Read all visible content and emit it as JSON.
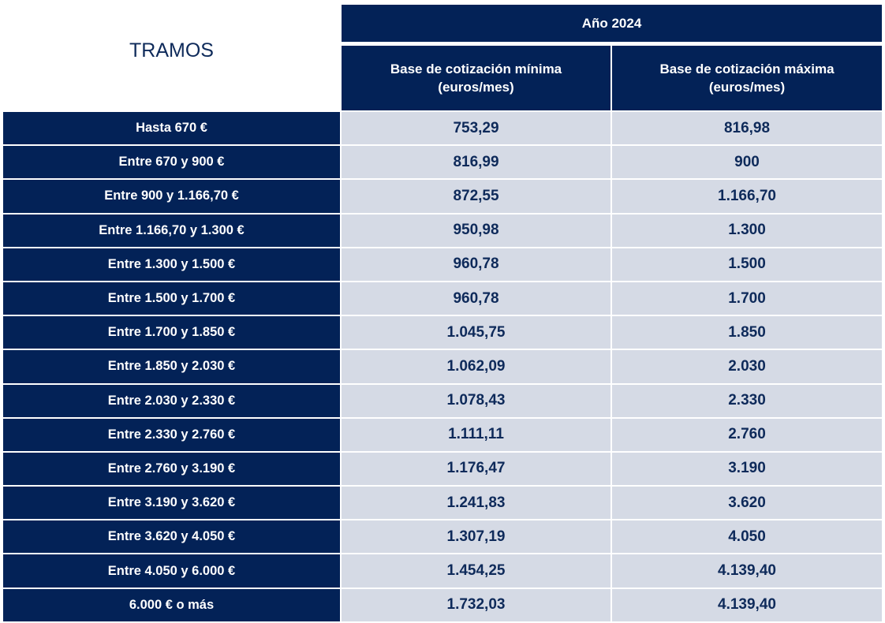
{
  "header": {
    "tramos_label": "TRAMOS",
    "year_label": "Año 2024",
    "min_label_line1": "Base de cotización mínima",
    "min_label_line2": "(euros/mes)",
    "max_label_line1": "Base de cotización máxima",
    "max_label_line2": "(euros/mes)"
  },
  "rows": [
    {
      "tramo": "Hasta 670 €",
      "min": "753,29",
      "max": "816,98"
    },
    {
      "tramo": "Entre 670 y 900 €",
      "min": "816,99",
      "max": "900"
    },
    {
      "tramo": "Entre 900 y 1.166,70 €",
      "min": "872,55",
      "max": "1.166,70"
    },
    {
      "tramo": "Entre 1.166,70 y 1.300 €",
      "min": "950,98",
      "max": "1.300"
    },
    {
      "tramo": "Entre 1.300 y 1.500 €",
      "min": "960,78",
      "max": "1.500"
    },
    {
      "tramo": "Entre 1.500 y 1.700 €",
      "min": "960,78",
      "max": "1.700"
    },
    {
      "tramo": "Entre 1.700 y 1.850 €",
      "min": "1.045,75",
      "max": "1.850"
    },
    {
      "tramo": "Entre 1.850 y 2.030 €",
      "min": "1.062,09",
      "max": "2.030"
    },
    {
      "tramo": "Entre 2.030 y 2.330 €",
      "min": "1.078,43",
      "max": "2.330"
    },
    {
      "tramo": "Entre 2.330 y 2.760 €",
      "min": "1.111,11",
      "max": "2.760"
    },
    {
      "tramo": "Entre 2.760 y 3.190 €",
      "min": "1.176,47",
      "max": "3.190"
    },
    {
      "tramo": "Entre 3.190 y 3.620 €",
      "min": "1.241,83",
      "max": "3.620"
    },
    {
      "tramo": "Entre 3.620 y 4.050 €",
      "min": "1.307,19",
      "max": "4.050"
    },
    {
      "tramo": "Entre 4.050 y 6.000 €",
      "min": "1.454,25",
      "max": "4.139,40"
    },
    {
      "tramo": "6.000 € o más",
      "min": "1.732,03",
      "max": "4.139,40"
    }
  ],
  "colors": {
    "header_bg": "#032257",
    "value_bg": "#d5dae5",
    "value_text": "#0e2a5a"
  }
}
